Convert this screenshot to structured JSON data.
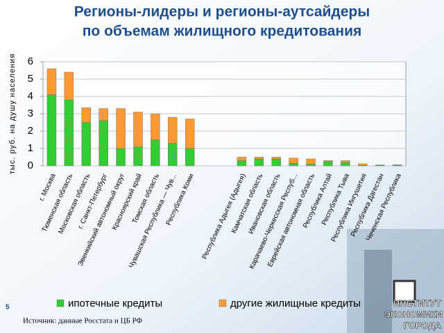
{
  "chart_data": {
    "type": "stacked-bar",
    "title": "Регионы-лидеры и регионы-аутсайдеры",
    "subtitle": "по объемам жилищного кредитования",
    "y_label": "тыс. руб. на душу населения",
    "categories": [
      "г. Москва",
      "Тюменская область",
      "Московская область",
      "г. Санкт-Петербург",
      "Эвенкийский автономный округ",
      "Красноярский край",
      "Томская область",
      "Чувашская Республика — Чув...",
      "Республика Коми",
      null,
      null,
      "Республика Адыгея (Адыгея)",
      "Камчатская область",
      "Ивановская область",
      "Карачаево-Черкесская Респуб...",
      "Еврейская автономная область",
      "Республика Алтай",
      "Республика Тыва",
      "Республика Ингушетия",
      "Республика Дагестан",
      "Чеченская Республика"
    ],
    "series": [
      {
        "name": "ипотечные кредиты",
        "color": "#33cc33",
        "values": [
          4.1,
          3.8,
          2.5,
          2.6,
          1.0,
          1.1,
          1.5,
          1.3,
          1.0,
          null,
          null,
          0.3,
          0.4,
          0.4,
          0.15,
          0.1,
          0.25,
          0.2,
          0.02,
          0.03,
          0.04
        ]
      },
      {
        "name": "другие жилищные кредиты",
        "color": "#ff9933",
        "values": [
          1.5,
          1.6,
          0.85,
          0.7,
          2.3,
          2.0,
          1.5,
          1.5,
          1.7,
          null,
          null,
          0.2,
          0.1,
          0.1,
          0.3,
          0.3,
          0.05,
          0.1,
          0.1,
          0.02,
          0.02
        ]
      }
    ],
    "ylim": [
      0,
      6
    ],
    "yticks": [
      0,
      1,
      2,
      3,
      4,
      5,
      6
    ],
    "grid": true
  },
  "footer": {
    "source": "Источник: данные Росстата и ЦБ РФ",
    "page": "5",
    "logo": [
      "ИНСТИТУТ",
      "ЭКОНОМИКИ",
      "ГОРОДА"
    ]
  }
}
